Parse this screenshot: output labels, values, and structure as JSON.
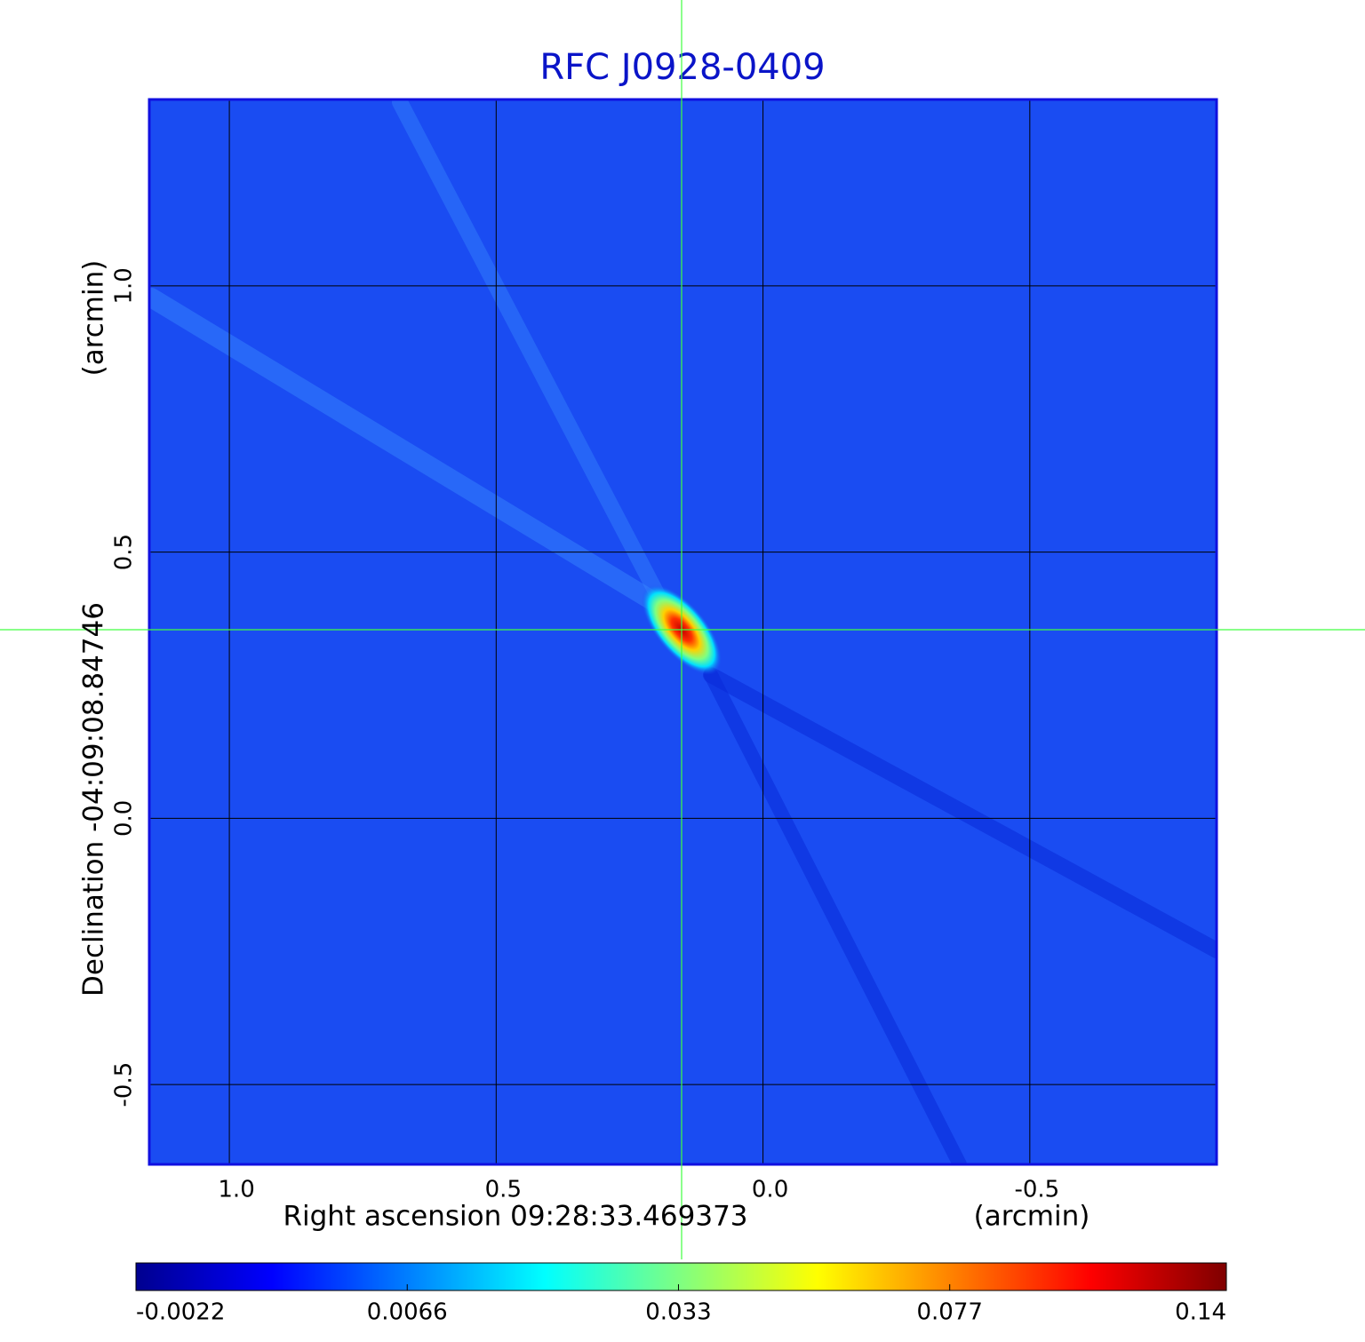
{
  "chart_data": {
    "type": "image",
    "title": "RFC J0928-0409",
    "xlabel": "Right ascension  09:28:33.469373",
    "xunit": "(arcmin)",
    "ylabel": "Declination  -04:09:08.84746",
    "yunit": "(arcmin)",
    "xlim": [
      1.15,
      -0.85
    ],
    "xticks": [
      {
        "value": 1,
        "label": "1.0"
      },
      0.5,
      {
        "value": 0,
        "label": "0.0"
      },
      -0.5
    ],
    "ylim": [
      -0.65,
      1.35
    ],
    "yticks": [
      {
        "value": 1,
        "label": "1.0"
      },
      0.5,
      {
        "value": 0,
        "label": "0.0"
      },
      -0.5
    ],
    "grid": true,
    "colorbar": {
      "scale": "sqrt",
      "lim": [
        -0.0022,
        0.14
      ],
      "ticks": [
        -0.0022,
        0.0066,
        0.033,
        0.077,
        0.14
      ]
    }
  }
}
